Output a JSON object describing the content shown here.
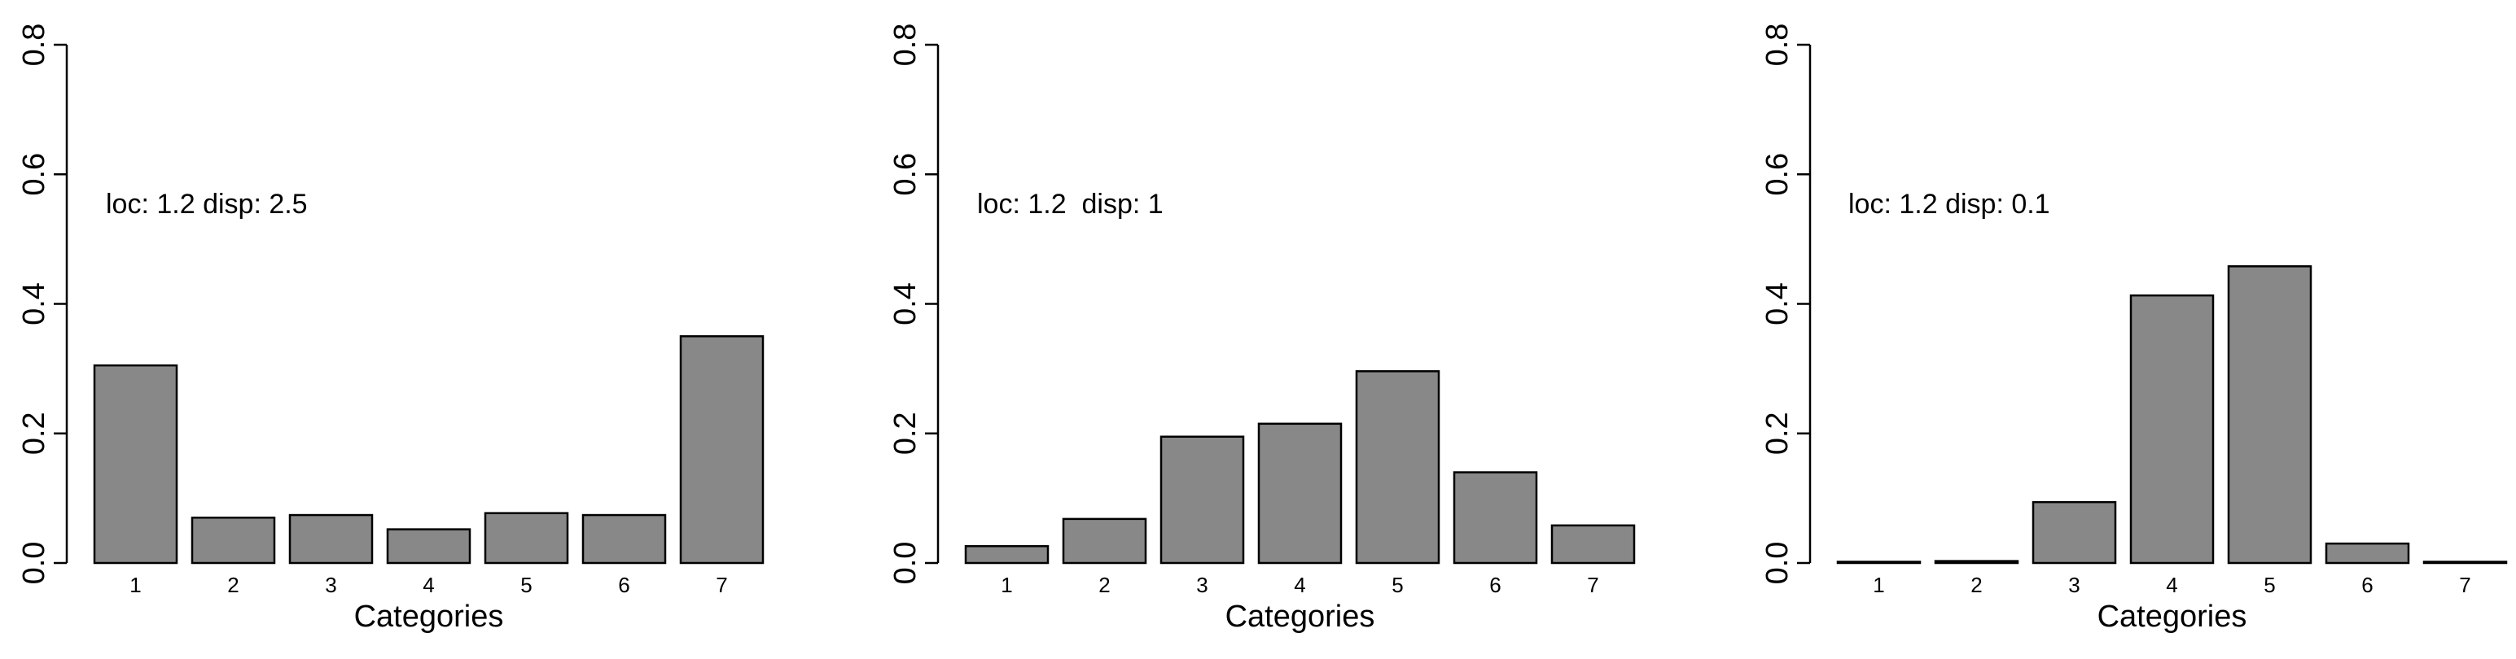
{
  "chart_data": [
    {
      "type": "bar",
      "xlabel": "Categories",
      "ylabel": "",
      "categories": [
        "1",
        "2",
        "3",
        "4",
        "5",
        "6",
        "7"
      ],
      "values": [
        0.305,
        0.07,
        0.074,
        0.052,
        0.077,
        0.074,
        0.35
      ],
      "ylim": [
        0,
        0.8
      ],
      "yticks": [
        "0.0",
        "0.2",
        "0.4",
        "0.6",
        "0.8"
      ],
      "ytick_values": [
        0,
        0.2,
        0.4,
        0.6,
        0.8
      ],
      "annotation": "loc: 1.2 disp: 2.5",
      "bar_color": "#888888",
      "grid": false
    },
    {
      "type": "bar",
      "xlabel": "Categories",
      "ylabel": "",
      "categories": [
        "1",
        "2",
        "3",
        "4",
        "5",
        "6",
        "7"
      ],
      "values": [
        0.026,
        0.068,
        0.195,
        0.215,
        0.296,
        0.14,
        0.058
      ],
      "ylim": [
        0,
        0.8
      ],
      "yticks": [
        "0.0",
        "0.2",
        "0.4",
        "0.6",
        "0.8"
      ],
      "ytick_values": [
        0,
        0.2,
        0.4,
        0.6,
        0.8
      ],
      "annotation": "loc: 1.2  disp: 1",
      "bar_color": "#888888",
      "grid": false
    },
    {
      "type": "bar",
      "xlabel": "Categories",
      "ylabel": "",
      "categories": [
        "1",
        "2",
        "3",
        "4",
        "5",
        "6",
        "7"
      ],
      "values": [
        0.001,
        0.003,
        0.094,
        0.413,
        0.458,
        0.03,
        0.001
      ],
      "ylim": [
        0,
        0.8
      ],
      "yticks": [
        "0.0",
        "0.2",
        "0.4",
        "0.6",
        "0.8"
      ],
      "ytick_values": [
        0,
        0.2,
        0.4,
        0.6,
        0.8
      ],
      "annotation": "loc: 1.2 disp: 0.1",
      "bar_color": "#888888",
      "grid": false
    }
  ]
}
